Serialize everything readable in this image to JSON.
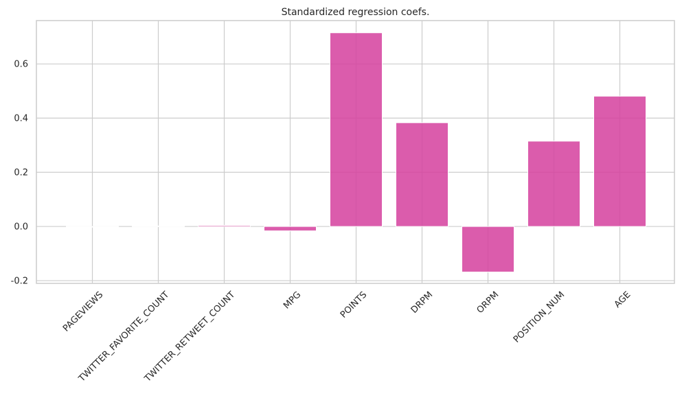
{
  "chart_data": {
    "type": "bar",
    "title": "Standardized regression coefs.",
    "xlabel": "",
    "ylabel": "",
    "categories": [
      "PAGEVIEWS",
      "TWITTER_FAVORITE_COUNT",
      "TWITTER_RETWEET_COUNT",
      "MPG",
      "POINTS",
      "DRPM",
      "ORPM",
      "POSITION_NUM",
      "AGE"
    ],
    "values": [
      -0.002,
      0.002,
      0.004,
      -0.016,
      0.715,
      0.383,
      -0.168,
      0.315,
      0.481
    ],
    "yticks": [
      "-0.2",
      "0.0",
      "0.2",
      "0.4",
      "0.6"
    ],
    "ylim": [
      -0.21,
      0.76
    ],
    "grid": true,
    "bar_color": "#D53F9E",
    "grid_color": "#cccccc",
    "axis_color": "#cccccc"
  }
}
